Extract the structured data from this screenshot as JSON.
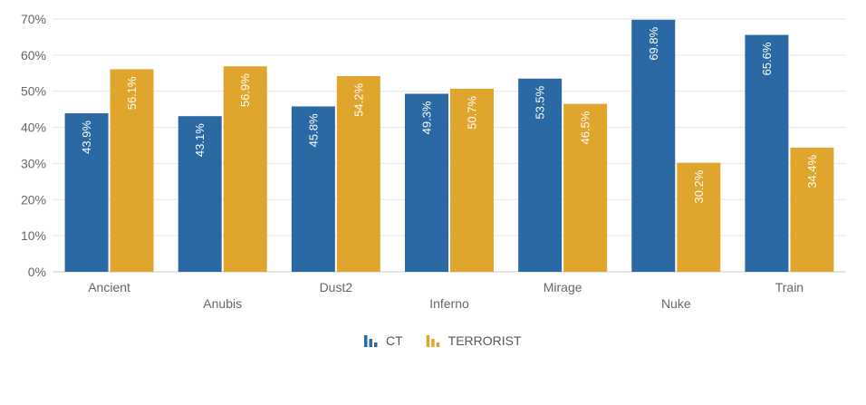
{
  "chart_data": {
    "type": "bar",
    "categories": [
      "Ancient",
      "Anubis",
      "Dust2",
      "Inferno",
      "Mirage",
      "Nuke",
      "Train"
    ],
    "series": [
      {
        "name": "CT",
        "color": "#2a69a4",
        "values": [
          43.9,
          43.1,
          45.8,
          49.3,
          53.5,
          69.8,
          65.6
        ],
        "labels": [
          "43.9%",
          "43.1%",
          "45.8%",
          "49.3%",
          "53.5%",
          "69.8%",
          "65.6%"
        ]
      },
      {
        "name": "TERRORIST",
        "color": "#e0a52c",
        "values": [
          56.1,
          56.9,
          54.2,
          50.7,
          46.5,
          30.2,
          34.4
        ],
        "labels": [
          "56.1%",
          "56.9%",
          "54.2%",
          "50.7%",
          "46.5%",
          "30.2%",
          "34.4%"
        ]
      }
    ],
    "ylim": [
      0,
      70
    ],
    "yticks": [
      "0%",
      "10%",
      "20%",
      "30%",
      "40%",
      "50%",
      "60%",
      "70%"
    ],
    "grid": true,
    "legend": "bottom-center",
    "xlabel": "",
    "ylabel": "",
    "title": ""
  }
}
